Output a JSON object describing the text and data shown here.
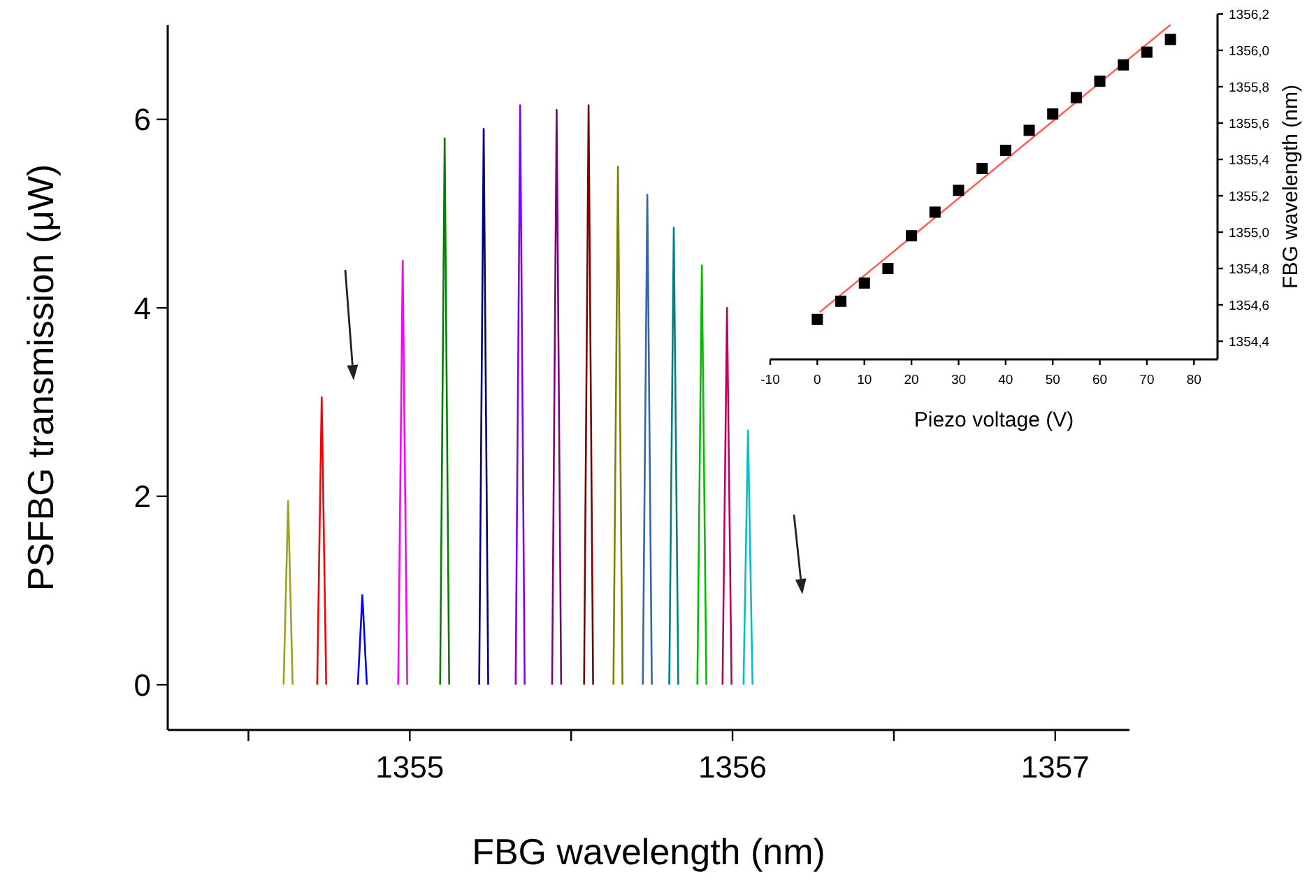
{
  "chart_data": [
    {
      "type": "line",
      "xlabel": "FBG wavelength (nm)",
      "ylabel": "PSFBG transmission (μW)",
      "xlim": [
        1354.25,
        1357.23
      ],
      "ylim": [
        -0.48,
        7.0
      ],
      "xticks": [
        {
          "value": 1354.5,
          "label": null
        },
        1355,
        {
          "value": 1355.5,
          "label": null
        },
        1356,
        {
          "value": 1356.5,
          "label": null
        },
        1357
      ],
      "yticks": [
        0,
        2,
        4,
        6
      ],
      "grid": false,
      "series": [
        {
          "color": "#a0a020",
          "x": [
            1354.609,
            1354.623,
            1354.637
          ],
          "values": [
            0,
            1.95,
            0
          ]
        },
        {
          "color": "#ff0000",
          "x": [
            1354.713,
            1354.727,
            1354.741
          ],
          "values": [
            0,
            3.05,
            0
          ]
        },
        {
          "color": "#0000ff",
          "x": [
            1354.839,
            1354.853,
            1354.867
          ],
          "values": [
            0,
            0.95,
            0
          ]
        },
        {
          "color": "#ff00ff",
          "x": [
            1354.964,
            1354.978,
            1354.992
          ],
          "values": [
            0,
            4.5,
            0
          ]
        },
        {
          "color": "#008000",
          "x": [
            1355.094,
            1355.108,
            1355.122
          ],
          "values": [
            0,
            5.8,
            0
          ]
        },
        {
          "color": "#000080",
          "x": [
            1355.215,
            1355.229,
            1355.243
          ],
          "values": [
            0,
            5.9,
            0
          ]
        },
        {
          "color": "#8000ff",
          "x": [
            1355.328,
            1355.342,
            1355.356
          ],
          "values": [
            0,
            6.15,
            0
          ]
        },
        {
          "color": "#800080",
          "x": [
            1355.441,
            1355.455,
            1355.469
          ],
          "values": [
            0,
            6.1,
            0
          ]
        },
        {
          "color": "#800000",
          "x": [
            1355.54,
            1355.554,
            1355.568
          ],
          "values": [
            0,
            6.15,
            0
          ]
        },
        {
          "color": "#808000",
          "x": [
            1355.631,
            1355.645,
            1355.659
          ],
          "values": [
            0,
            5.5,
            0
          ]
        },
        {
          "color": "#3366aa",
          "x": [
            1355.722,
            1355.736,
            1355.75
          ],
          "values": [
            0,
            5.2,
            0
          ]
        },
        {
          "color": "#008080",
          "x": [
            1355.804,
            1355.818,
            1355.832
          ],
          "values": [
            0,
            4.85,
            0
          ]
        },
        {
          "color": "#00c000",
          "x": [
            1355.891,
            1355.905,
            1355.919
          ],
          "values": [
            0,
            4.45,
            0
          ]
        },
        {
          "color": "#c00060",
          "x": [
            1355.969,
            1355.983,
            1355.997
          ],
          "values": [
            0,
            4.0,
            0
          ]
        },
        {
          "color": "#00c0d0",
          "x": [
            1356.034,
            1356.048,
            1356.062
          ],
          "values": [
            0,
            2.7,
            0
          ]
        }
      ]
    },
    {
      "type": "scatter",
      "xlabel": "Piezo voltage (V)",
      "ylabel": "FBG wavelength (nm)",
      "xlim": [
        -10,
        85
      ],
      "ylim": [
        1354.3,
        1356.2
      ],
      "grid": false,
      "xticks": [
        -10,
        0,
        10,
        20,
        30,
        40,
        50,
        60,
        70,
        80
      ],
      "yticks": [
        {
          "value": 1354.4,
          "label": "1354,4"
        },
        {
          "value": 1354.6,
          "label": "1354,6"
        },
        {
          "value": 1354.8,
          "label": "1354,8"
        },
        {
          "value": 1355.0,
          "label": "1355,0"
        },
        {
          "value": 1355.2,
          "label": "1355,2"
        },
        {
          "value": 1355.4,
          "label": "1355,4"
        },
        {
          "value": 1355.6,
          "label": "1355,6"
        },
        {
          "value": 1355.8,
          "label": "1355,8"
        },
        {
          "value": 1356.0,
          "label": "1356,0"
        },
        {
          "value": 1356.2,
          "label": "1356,2"
        }
      ],
      "series": [
        {
          "type": "line",
          "color": "#ff6060",
          "x": [
            0.5,
            75
          ],
          "values": [
            1354.56,
            1356.14
          ]
        },
        {
          "marker": "square",
          "color": "#000000",
          "x": [
            0,
            5,
            10,
            15,
            20,
            25,
            30,
            35,
            40,
            45,
            50,
            55,
            60,
            65,
            70,
            75
          ],
          "values": [
            1354.52,
            1354.62,
            1354.72,
            1354.8,
            1354.98,
            1355.11,
            1355.23,
            1355.35,
            1355.45,
            1355.56,
            1355.65,
            1355.74,
            1355.83,
            1355.92,
            1355.99,
            1356.06
          ]
        }
      ]
    }
  ]
}
